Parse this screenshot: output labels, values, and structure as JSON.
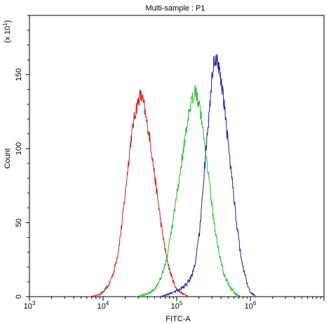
{
  "chart_data": {
    "type": "area",
    "title": "Multi-sample : P1",
    "xlabel": "FITC-A",
    "ylabel": "Count",
    "y_multiplier_label": "(x 10",
    "y_multiplier_exp": "1",
    "x_scale": "log",
    "xlim": [
      1000,
      10000000
    ],
    "ylim": [
      0,
      190
    ],
    "x_ticks": [
      {
        "base": "10",
        "exp": "3",
        "value": 1000
      },
      {
        "base": "10",
        "exp": "4",
        "value": 10000
      },
      {
        "base": "10",
        "exp": "5",
        "value": 100000
      },
      {
        "base": "10",
        "exp": "6",
        "value": 1000000
      }
    ],
    "y_ticks": [
      0,
      50,
      100,
      150
    ],
    "grid": false,
    "series": [
      {
        "color": "#d42020",
        "points": [
          [
            6500,
            0
          ],
          [
            8500,
            1
          ],
          [
            10000,
            3
          ],
          [
            12000,
            8
          ],
          [
            14000,
            17
          ],
          [
            16000,
            30
          ],
          [
            18000,
            49
          ],
          [
            20000,
            70
          ],
          [
            22000,
            90
          ],
          [
            24000,
            107
          ],
          [
            26000,
            118
          ],
          [
            28000,
            127
          ],
          [
            30000,
            132
          ],
          [
            32000,
            136
          ],
          [
            34000,
            134
          ],
          [
            36000,
            129
          ],
          [
            38000,
            121
          ],
          [
            42000,
            110
          ],
          [
            46000,
            97
          ],
          [
            50000,
            82
          ],
          [
            56000,
            64
          ],
          [
            62000,
            47
          ],
          [
            70000,
            31
          ],
          [
            80000,
            18
          ],
          [
            90000,
            10
          ],
          [
            100000,
            5
          ],
          [
            120000,
            2
          ],
          [
            150000,
            0
          ]
        ]
      },
      {
        "color": "#20c020",
        "points": [
          [
            28000,
            0
          ],
          [
            40000,
            2
          ],
          [
            50000,
            5
          ],
          [
            60000,
            12
          ],
          [
            70000,
            22
          ],
          [
            80000,
            36
          ],
          [
            90000,
            52
          ],
          [
            100000,
            68
          ],
          [
            110000,
            82
          ],
          [
            120000,
            96
          ],
          [
            135000,
            112
          ],
          [
            150000,
            125
          ],
          [
            165000,
            134
          ],
          [
            175000,
            141
          ],
          [
            185000,
            139
          ],
          [
            195000,
            132
          ],
          [
            210000,
            125
          ],
          [
            230000,
            110
          ],
          [
            260000,
            90
          ],
          [
            290000,
            68
          ],
          [
            330000,
            46
          ],
          [
            380000,
            28
          ],
          [
            440000,
            15
          ],
          [
            520000,
            7
          ],
          [
            620000,
            2
          ],
          [
            750000,
            0
          ]
        ]
      },
      {
        "color": "#2020a8",
        "points": [
          [
            60000,
            0
          ],
          [
            80000,
            2
          ],
          [
            100000,
            4
          ],
          [
            120000,
            6
          ],
          [
            140000,
            9
          ],
          [
            160000,
            14
          ],
          [
            180000,
            24
          ],
          [
            200000,
            40
          ],
          [
            220000,
            62
          ],
          [
            240000,
            88
          ],
          [
            260000,
            108
          ],
          [
            280000,
            128
          ],
          [
            300000,
            146
          ],
          [
            320000,
            158
          ],
          [
            340000,
            161
          ],
          [
            360000,
            157
          ],
          [
            380000,
            153
          ],
          [
            410000,
            143
          ],
          [
            450000,
            125
          ],
          [
            500000,
            104
          ],
          [
            560000,
            80
          ],
          [
            630000,
            56
          ],
          [
            710000,
            35
          ],
          [
            800000,
            19
          ],
          [
            900000,
            9
          ],
          [
            1000000,
            3
          ],
          [
            1200000,
            0
          ]
        ]
      }
    ]
  }
}
